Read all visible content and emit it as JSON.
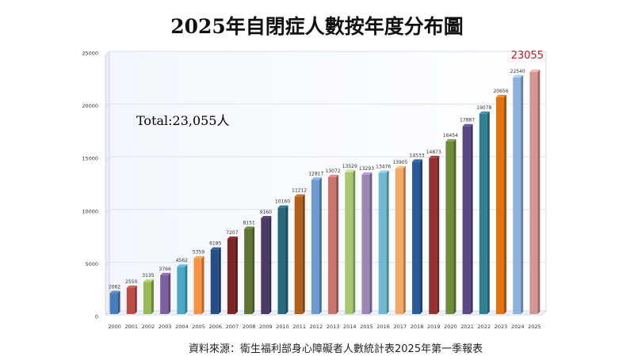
{
  "chart_data": {
    "type": "bar",
    "title": "2025年自閉症人數按年度分布圖",
    "annotation": "Total:23,055人",
    "source": "資料來源：衛生福利部身心障礙者人數統計表2025年第一季報表",
    "categories": [
      "2000",
      "2001",
      "2002",
      "2003",
      "2004",
      "2005",
      "2006",
      "2007",
      "2008",
      "2009",
      "2010",
      "2011",
      "2012",
      "2013",
      "2014",
      "2015",
      "2016",
      "2017",
      "2018",
      "2019",
      "2020",
      "2021",
      "2022",
      "2023",
      "2024",
      "2025"
    ],
    "values": [
      2062,
      2550,
      3135,
      3766,
      4562,
      5359,
      6185,
      7207,
      8151,
      9160,
      10160,
      11212,
      12817,
      13072,
      13529,
      13293,
      13476,
      13905,
      14533,
      14873,
      16454,
      17887,
      19078,
      20656,
      22540,
      23055
    ],
    "value_labels": [
      "2062",
      "2550",
      "3135",
      "3766",
      "4562",
      "5359",
      "6185",
      "7207",
      "8151",
      "9160",
      "10160",
      "11212",
      "12817",
      "13072",
      "13529",
      "13293",
      "13476",
      "13905",
      "14533",
      "14873",
      "16454",
      "17887",
      "19078",
      "20656",
      "22540",
      "23055"
    ],
    "highlight_index": 25,
    "highlight_color": "#d0101a",
    "ylim": [
      0,
      25000
    ],
    "yticks": [
      "0",
      "5000",
      "10000",
      "15000",
      "20000",
      "25000"
    ],
    "grid": true,
    "colors": [
      "#4a7ebb",
      "#be4b48",
      "#98b954",
      "#7d60a0",
      "#46aac5",
      "#f69240",
      "#254f86",
      "#7f2624",
      "#5f7530",
      "#4b3a66",
      "#256a7f",
      "#b25f18",
      "#6d9ad2",
      "#cc7470",
      "#a9c873",
      "#9a86b7",
      "#6fb9d2",
      "#f7a862",
      "#2a5a97",
      "#953230",
      "#6f8c38",
      "#5c4883",
      "#307f95",
      "#e3720f",
      "#8eb1dd",
      "#d49693"
    ]
  }
}
